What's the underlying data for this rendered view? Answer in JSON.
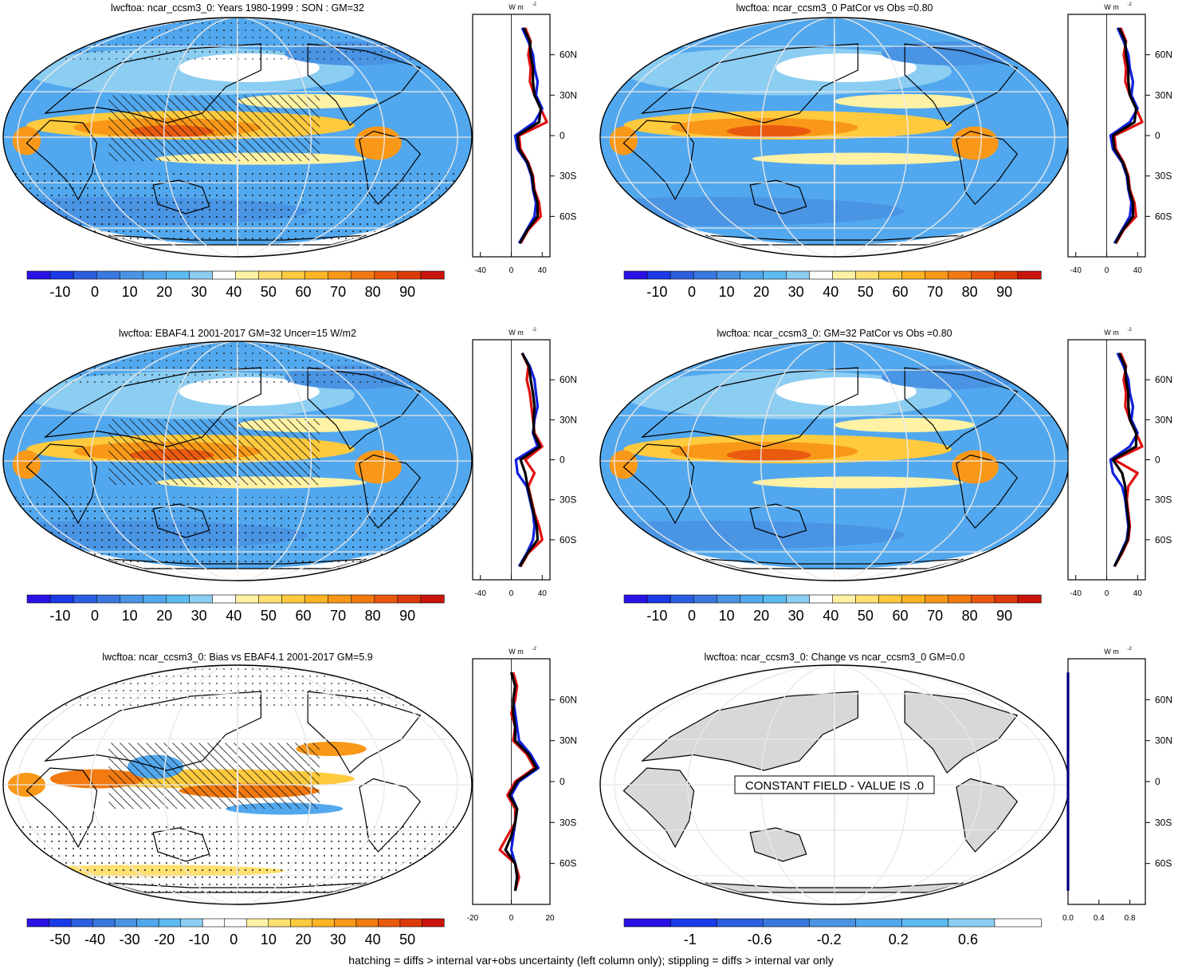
{
  "footnote": "hatching = diffs > internal var+obs uncertainty (left column only); stippling = diffs > internal var only",
  "units_label": "W m",
  "units_exp": "-2",
  "lat_ticks": [
    "60N",
    "30N",
    "0",
    "30S",
    "60S"
  ],
  "colors": {
    "seq": [
      "#2a12e6",
      "#1a3ae8",
      "#2c5ee0",
      "#3a78e0",
      "#4a94e4",
      "#52a8ee",
      "#5cbcf2",
      "#8ccdf2",
      "#ffffff",
      "#fff2a4",
      "#ffe070",
      "#ffca3e",
      "#ffb424",
      "#f99818",
      "#f27a10",
      "#ea5a0e",
      "#dc3a0a",
      "#c8140a"
    ],
    "bias": [
      "#2a12e6",
      "#1a3ae8",
      "#2c5ee0",
      "#3a78e0",
      "#4a94e4",
      "#52a8ee",
      "#5cbcf2",
      "#8ccdf2",
      "#ffffff",
      "#ffffff",
      "#fff2a4",
      "#ffe070",
      "#ffca3e",
      "#ffb424",
      "#f99818",
      "#f27a10",
      "#ea5a0e",
      "#dc3a0a",
      "#c8140a"
    ],
    "change": [
      "#2a12e6",
      "#1a3ae8",
      "#2c5ee0",
      "#3a78e0",
      "#4a94e4",
      "#52a8ee",
      "#5cbcf2",
      "#8ccdf2",
      "#ffffff"
    ],
    "obs_line": "#e01010",
    "model_line": "#1020e0",
    "mean_line": "#000000",
    "land": "#d8d8d8"
  },
  "panels": [
    {
      "id": "model-clim",
      "title": "lwcftoa: ncar_ccsm3_0: Years 1980-1999 : SON : GM=32",
      "colorbar": "seq",
      "cb_labels": [
        "-10",
        "0",
        "10",
        "20",
        "30",
        "40",
        "50",
        "60",
        "70",
        "80",
        "90"
      ],
      "profile_ticks": [
        "-40",
        "0",
        "40"
      ],
      "profile_range": [
        -50,
        50
      ]
    },
    {
      "id": "model-clim-2",
      "title": "lwcftoa: ncar_ccsm3_0 PatCor vs Obs =0.80",
      "colorbar": "seq",
      "cb_labels": [
        "-10",
        "0",
        "10",
        "20",
        "30",
        "40",
        "50",
        "60",
        "70",
        "80",
        "90"
      ],
      "profile_ticks": [
        "-40",
        "0",
        "40"
      ],
      "profile_range": [
        -50,
        50
      ]
    },
    {
      "id": "obs-clim",
      "title": "lwcftoa: EBAF4.1 2001-2017 GM=32 Uncer=15 W/m2",
      "colorbar": "seq",
      "cb_labels": [
        "-10",
        "0",
        "10",
        "20",
        "30",
        "40",
        "50",
        "60",
        "70",
        "80",
        "90"
      ],
      "profile_ticks": [
        "-40",
        "0",
        "40"
      ],
      "profile_range": [
        -50,
        50
      ]
    },
    {
      "id": "model-clim-3",
      "title": "lwcftoa: ncar_ccsm3_0: GM=32 PatCor vs Obs =0.80",
      "colorbar": "seq",
      "cb_labels": [
        "-10",
        "0",
        "10",
        "20",
        "30",
        "40",
        "50",
        "60",
        "70",
        "80",
        "90"
      ],
      "profile_ticks": [
        "-40",
        "0",
        "40"
      ],
      "profile_range": [
        -50,
        50
      ]
    },
    {
      "id": "bias",
      "title": "lwcftoa: ncar_ccsm3_0: Bias vs EBAF4.1 2001-2017  GM=5.9",
      "colorbar": "bias",
      "cb_labels": [
        "-50",
        "-40",
        "-30",
        "-20",
        "-10",
        "0",
        "10",
        "20",
        "30",
        "40",
        "50"
      ],
      "profile_ticks": [
        "-20",
        "0",
        "20"
      ],
      "profile_range": [
        -20,
        20
      ]
    },
    {
      "id": "change",
      "title": "lwcftoa: ncar_ccsm3_0: Change vs ncar_ccsm3_0 GM=0.0",
      "colorbar": "change",
      "cb_labels": [
        "-1",
        "-0.6",
        "-0.2",
        "0.2",
        "0.6"
      ],
      "profile_ticks": [
        "0.0",
        "0.4",
        "0.8"
      ],
      "profile_range": [
        0,
        1
      ],
      "constant_label": "CONSTANT FIELD - VALUE IS .0"
    }
  ],
  "chart_data": [
    {
      "type": "heatmap",
      "title": "lwcftoa: ncar_ccsm3_0: Years 1980-1999 : SON : GM=32",
      "colorbar_ticks": [
        -10,
        0,
        10,
        20,
        30,
        40,
        50,
        60,
        70,
        80,
        90
      ],
      "zonal_profile": {
        "lat": [
          80,
          70,
          60,
          50,
          40,
          30,
          20,
          10,
          0,
          -10,
          -20,
          -30,
          -40,
          -50,
          -60,
          -70,
          -80
        ],
        "series": [
          {
            "values": [
              18,
              25,
              22,
              25,
              24,
              30,
              38,
              46,
              10,
              12,
              22,
              28,
              30,
              36,
              38,
              22,
              12
            ]
          },
          {
            "values": [
              14,
              22,
              28,
              30,
              34,
              32,
              40,
              30,
              5,
              8,
              20,
              26,
              28,
              32,
              30,
              20,
              10
            ]
          },
          {
            "values": [
              16,
              24,
              25,
              28,
              28,
              30,
              38,
              36,
              8,
              10,
              21,
              27,
              29,
              34,
              34,
              21,
              11
            ]
          }
        ],
        "xlim": [
          -50,
          50
        ]
      }
    },
    {
      "type": "heatmap",
      "title": "lwcftoa: ncar_ccsm3_0 PatCor vs Obs =0.80",
      "colorbar_ticks": [
        -10,
        0,
        10,
        20,
        30,
        40,
        50,
        60,
        70,
        80,
        90
      ],
      "zonal_profile": {
        "lat": [
          80,
          70,
          60,
          50,
          40,
          30,
          20,
          10,
          0,
          -10,
          -20,
          -30,
          -40,
          -50,
          -60,
          -70,
          -80
        ],
        "series": [
          {
            "values": [
              18,
              25,
              22,
              25,
              24,
              30,
              38,
              46,
              10,
              12,
              22,
              28,
              30,
              36,
              38,
              22,
              12
            ]
          },
          {
            "values": [
              14,
              22,
              28,
              30,
              34,
              32,
              40,
              30,
              5,
              8,
              20,
              26,
              28,
              32,
              30,
              20,
              10
            ]
          },
          {
            "values": [
              16,
              24,
              25,
              28,
              28,
              30,
              38,
              36,
              8,
              10,
              21,
              27,
              29,
              34,
              34,
              21,
              11
            ]
          }
        ],
        "xlim": [
          -50,
          50
        ]
      }
    },
    {
      "type": "heatmap",
      "title": "lwcftoa: EBAF4.1 2001-2017 GM=32 Uncer=15 W/m2",
      "colorbar_ticks": [
        -10,
        0,
        10,
        20,
        30,
        40,
        50,
        60,
        70,
        80,
        90
      ],
      "zonal_profile": {
        "lat": [
          80,
          70,
          60,
          50,
          40,
          30,
          20,
          10,
          0,
          -10,
          -20,
          -30,
          -40,
          -50,
          -60,
          -70,
          -80
        ],
        "series": [
          {
            "values": [
              14,
              22,
              20,
              24,
              26,
              28,
              30,
              40,
              18,
              30,
              22,
              26,
              30,
              36,
              40,
              22,
              12
            ]
          },
          {
            "values": [
              14,
              24,
              30,
              32,
              34,
              30,
              28,
              34,
              6,
              8,
              20,
              24,
              28,
              30,
              28,
              20,
              10
            ]
          },
          {
            "values": [
              14,
              23,
              25,
              28,
              30,
              29,
              29,
              37,
              12,
              18,
              21,
              25,
              29,
              33,
              34,
              21,
              11
            ]
          }
        ],
        "xlim": [
          -50,
          50
        ]
      }
    },
    {
      "type": "heatmap",
      "title": "lwcftoa: ncar_ccsm3_0: GM=32 PatCor vs Obs =0.80",
      "colorbar_ticks": [
        -10,
        0,
        10,
        20,
        30,
        40,
        50,
        60,
        70,
        80,
        90
      ],
      "zonal_profile": {
        "lat": [
          80,
          70,
          60,
          50,
          40,
          30,
          20,
          10,
          0,
          -10,
          -20,
          -30,
          -40,
          -50,
          -60,
          -70,
          -80
        ],
        "series": [
          {
            "values": [
              18,
              25,
              22,
              25,
              24,
              30,
              38,
              46,
              10,
              40,
              28,
              26,
              28,
              30,
              28,
              20,
              10
            ]
          },
          {
            "values": [
              14,
              22,
              28,
              30,
              34,
              32,
              40,
              30,
              5,
              8,
              20,
              24,
              26,
              28,
              26,
              18,
              10
            ]
          },
          {
            "values": [
              16,
              24,
              25,
              28,
              28,
              30,
              38,
              38,
              8,
              20,
              24,
              25,
              27,
              29,
              27,
              19,
              10
            ]
          }
        ],
        "xlim": [
          -50,
          50
        ]
      }
    },
    {
      "type": "heatmap",
      "title": "lwcftoa: ncar_ccsm3_0: Bias vs EBAF4.1 2001-2017  GM=5.9",
      "colorbar_ticks": [
        -50,
        -40,
        -30,
        -20,
        -10,
        0,
        10,
        20,
        30,
        40,
        50
      ],
      "zonal_profile": {
        "lat": [
          80,
          70,
          60,
          50,
          40,
          30,
          20,
          10,
          0,
          -10,
          -20,
          -30,
          -40,
          -50,
          -60,
          -70,
          -80
        ],
        "series": [
          {
            "values": [
              1,
              3,
              2,
              0,
              2,
              1,
              8,
              12,
              2,
              -2,
              2,
              2,
              -2,
              -6,
              2,
              4,
              2
            ]
          },
          {
            "values": [
              0,
              2,
              1,
              2,
              3,
              4,
              10,
              14,
              4,
              0,
              3,
              2,
              1,
              0,
              2,
              3,
              2
            ]
          },
          {
            "values": [
              0,
              2,
              1,
              1,
              2,
              2,
              9,
              13,
              3,
              -1,
              3,
              2,
              0,
              -3,
              2,
              3,
              2
            ]
          }
        ],
        "xlim": [
          -20,
          20
        ]
      }
    },
    {
      "type": "heatmap",
      "title": "lwcftoa: ncar_ccsm3_0: Change vs ncar_ccsm3_0 GM=0.0",
      "colorbar_ticks": [
        -1,
        -0.6,
        -0.2,
        0.2,
        0.6
      ],
      "zonal_profile": {
        "lat": [
          80,
          -80
        ],
        "series": [
          {
            "values": [
              0,
              0
            ]
          }
        ],
        "xlim": [
          0,
          1
        ]
      }
    }
  ]
}
